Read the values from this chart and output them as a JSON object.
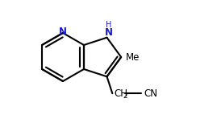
{
  "background_color": "#ffffff",
  "line_color": "#000000",
  "N_color": "#1a1acd",
  "bond_lw": 1.5,
  "figsize": [
    2.69,
    1.53
  ],
  "dpi": 100,
  "xlim": [
    0,
    269
  ],
  "ylim": [
    0,
    153
  ]
}
